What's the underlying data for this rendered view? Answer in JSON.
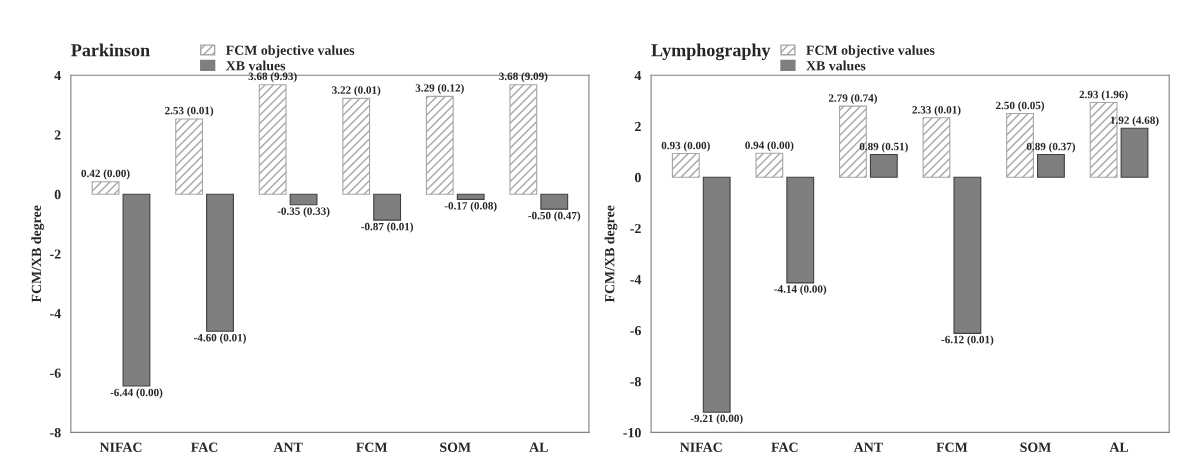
{
  "chart_data": [
    {
      "type": "bar",
      "title": "Parkinson",
      "ylabel": "FCM/XB degree",
      "categories": [
        "NIFAC",
        "FAC",
        "ANT",
        "FCM",
        "SOM",
        "AL"
      ],
      "ylim": [
        -8,
        4
      ],
      "yticks": [
        -8,
        -6,
        -4,
        -2,
        0,
        2,
        4
      ],
      "grid": false,
      "legend": "top left",
      "series": [
        {
          "name": "FCM objective values",
          "color": "#a6a6a6",
          "values": [
            0.42,
            2.53,
            3.68,
            3.22,
            3.29,
            3.68
          ],
          "value_labels": [
            "0.42 (0.00)",
            "2.53 (0.01)",
            "3.68 (9.93)",
            "3.22 (0.01)",
            "3.29 (0.12)",
            "3.68 (9.09)"
          ]
        },
        {
          "name": "XB values",
          "color": "#7f7f7f",
          "values": [
            -6.44,
            -4.6,
            -0.35,
            -0.87,
            -0.17,
            -0.5
          ],
          "value_labels": [
            "-6.44 (0.00)",
            "-4.60 (0.01)",
            "-0.35 (0.33)",
            "-0.87 (0.01)",
            "-0.17 (0.08)",
            "-0.50 (0.47)"
          ]
        }
      ]
    },
    {
      "type": "bar",
      "title": "Lymphography",
      "ylabel": "FCM/XB degree",
      "categories": [
        "NIFAC",
        "FAC",
        "ANT",
        "FCM",
        "SOM",
        "AL"
      ],
      "ylim": [
        -10,
        4
      ],
      "yticks": [
        -10,
        -8,
        -6,
        -4,
        -2,
        0,
        2,
        4
      ],
      "grid": false,
      "legend": "top left",
      "series": [
        {
          "name": "FCM objective values",
          "color": "#a6a6a6",
          "values": [
            0.93,
            0.94,
            2.79,
            2.33,
            2.5,
            2.93
          ],
          "value_labels": [
            "0.93 (0.00)",
            "0.94 (0.00)",
            "2.79 (0.74)",
            "2.33 (0.01)",
            "2.50 (0.05)",
            "2.93 (1.96)"
          ]
        },
        {
          "name": "XB values",
          "color": "#7f7f7f",
          "values": [
            -9.21,
            -4.14,
            0.89,
            -6.12,
            0.89,
            1.92
          ],
          "value_labels": [
            "-9.21 (0.00)",
            "-4.14 (0.00)",
            "0.89 (0.51)",
            "-6.12 (0.01)",
            "0.89 (0.37)",
            "1.92 (4.68)"
          ]
        }
      ]
    }
  ]
}
